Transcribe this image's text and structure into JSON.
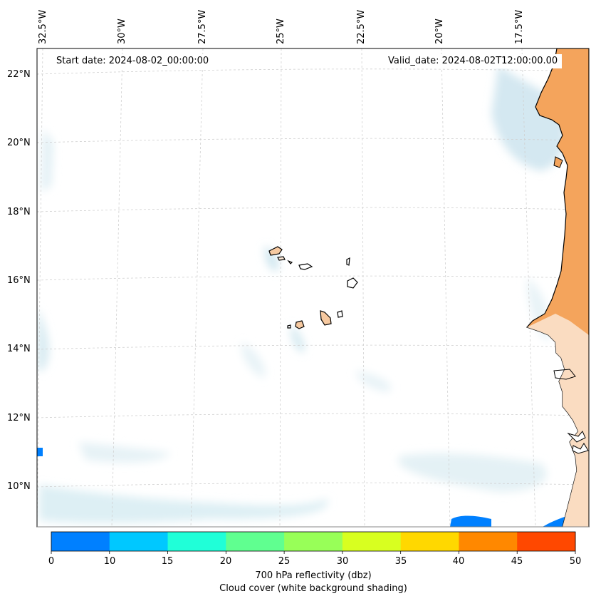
{
  "header": {
    "start_date": "Start date: 2024-08-02_00:00:00",
    "valid_date": "Valid_date: 2024-08-02T12:00:00.00"
  },
  "axes": {
    "longitude_labels": [
      "32.5°W",
      "30°W",
      "27.5°W",
      "25°W",
      "22.5°W",
      "20°W",
      "17.5°W"
    ],
    "latitude_labels": [
      "22°N",
      "20°N",
      "18°N",
      "16°N",
      "14°N",
      "12°N",
      "10°N"
    ]
  },
  "colorbar": {
    "ticks": [
      "0",
      "10",
      "15",
      "20",
      "25",
      "30",
      "35",
      "40",
      "45",
      "50"
    ],
    "colors": [
      "#0080ff",
      "#00c8ff",
      "#20ffd8",
      "#60ff90",
      "#98ff58",
      "#d8ff20",
      "#ffd800",
      "#ff8800",
      "#ff4800"
    ],
    "title_line1": "700 hPa reflectivity (dbz)",
    "title_line2": "Cloud cover (white background shading)"
  },
  "map_colors": {
    "land": "#f4a45c",
    "cloud": "#c8e4ee",
    "coast": "#000000",
    "grid": "#cccccc"
  }
}
